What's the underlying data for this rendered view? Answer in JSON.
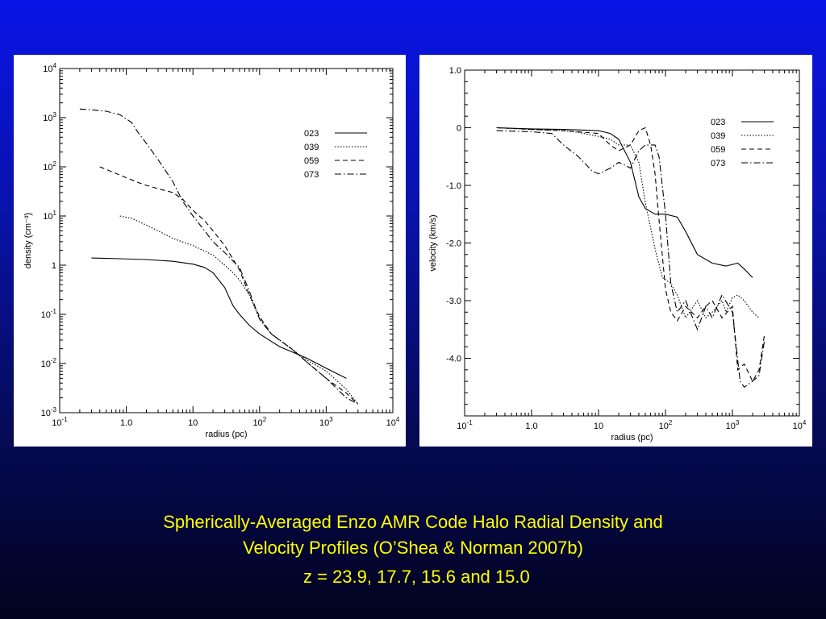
{
  "caption": {
    "line1": "Spherically-Averaged Enzo AMR Code Halo Radial Density and",
    "line2": "Velocity Profiles (O’Shea & Norman 2007b)",
    "line3": "z = 23.9, 17.7, 15.6 and 15.0"
  },
  "chart_data": [
    {
      "type": "line",
      "xlabel": "radius (pc)",
      "ylabel": "density (cm⁻³)",
      "xscale": "log",
      "yscale": "log",
      "xlim": [
        0.1,
        10000
      ],
      "ylim": [
        0.001,
        10000
      ],
      "x_ticks": [
        {
          "value": 0.1,
          "base": "10",
          "exp": "-1"
        },
        {
          "value": 1,
          "label": "1.0"
        },
        {
          "value": 10,
          "label": "10"
        },
        {
          "value": 100,
          "base": "10",
          "exp": "2"
        },
        {
          "value": 1000,
          "base": "10",
          "exp": "3"
        },
        {
          "value": 10000,
          "base": "10",
          "exp": "4"
        }
      ],
      "y_ticks": [
        {
          "value": 0.001,
          "base": "10",
          "exp": "-3"
        },
        {
          "value": 0.01,
          "base": "10",
          "exp": "-2"
        },
        {
          "value": 0.1,
          "base": "10",
          "exp": "-1"
        },
        {
          "value": 1,
          "label": "1"
        },
        {
          "value": 10,
          "base": "10",
          "exp": "1"
        },
        {
          "value": 100,
          "base": "10",
          "exp": "2"
        },
        {
          "value": 1000,
          "base": "10",
          "exp": "3"
        },
        {
          "value": 10000,
          "base": "10",
          "exp": "4"
        }
      ],
      "legend_position": "top-right",
      "series": [
        {
          "name": "023",
          "dash": "none",
          "x": [
            0.3,
            0.8,
            2,
            5,
            10,
            15,
            20,
            30,
            40,
            50,
            70,
            100,
            200,
            500,
            1000,
            2000
          ],
          "y": [
            1.4,
            1.35,
            1.3,
            1.2,
            1.05,
            0.9,
            0.7,
            0.35,
            0.15,
            0.1,
            0.06,
            0.04,
            0.022,
            0.013,
            0.008,
            0.005
          ]
        },
        {
          "name": "039",
          "dash": "1.5,2",
          "x": [
            0.8,
            1.2,
            2,
            3,
            5,
            10,
            20,
            30,
            40,
            50,
            70,
            100,
            150,
            200,
            300,
            500,
            1000,
            2000,
            3000
          ],
          "y": [
            10,
            9,
            6.5,
            5,
            3.5,
            2.5,
            1.6,
            1.0,
            0.7,
            0.5,
            0.25,
            0.08,
            0.04,
            0.03,
            0.02,
            0.012,
            0.007,
            0.003,
            0.0015
          ]
        },
        {
          "name": "059",
          "dash": "6,4",
          "x": [
            0.4,
            0.6,
            1,
            1.5,
            2,
            3,
            5,
            7,
            10,
            15,
            20,
            30,
            50,
            70,
            100,
            150,
            200,
            300,
            500,
            1000,
            2000,
            3000
          ],
          "y": [
            100,
            80,
            60,
            48,
            42,
            36,
            30,
            22,
            13,
            8,
            5,
            2.5,
            0.8,
            0.25,
            0.09,
            0.04,
            0.03,
            0.02,
            0.011,
            0.005,
            0.0025,
            0.0015
          ]
        },
        {
          "name": "073",
          "dash": "8,3,1.5,3",
          "x": [
            0.2,
            0.3,
            0.5,
            0.8,
            1.2,
            1.5,
            2,
            3,
            5,
            7,
            10,
            15,
            20,
            30,
            50,
            70,
            100,
            150,
            200,
            300,
            500,
            1000,
            2000,
            3000
          ],
          "y": [
            1500,
            1450,
            1350,
            1150,
            800,
            500,
            300,
            140,
            50,
            20,
            10,
            5,
            3,
            1.8,
            0.9,
            0.3,
            0.08,
            0.04,
            0.03,
            0.02,
            0.011,
            0.005,
            0.002,
            0.0015
          ]
        }
      ]
    },
    {
      "type": "line",
      "xlabel": "radius (pc)",
      "ylabel": "velocity (km/s)",
      "xscale": "log",
      "xlim": [
        0.1,
        10000
      ],
      "ylim": [
        -5.0,
        1.0
      ],
      "x_ticks": [
        {
          "value": 0.1,
          "base": "10",
          "exp": "-1"
        },
        {
          "value": 1,
          "label": "1.0"
        },
        {
          "value": 10,
          "label": "10"
        },
        {
          "value": 100,
          "base": "10",
          "exp": "2"
        },
        {
          "value": 1000,
          "base": "10",
          "exp": "3"
        },
        {
          "value": 10000,
          "base": "10",
          "exp": "4"
        }
      ],
      "y_ticks": [
        {
          "value": 1.0,
          "label": "1.0"
        },
        {
          "value": 0,
          "label": "0"
        },
        {
          "value": -1.0,
          "label": "-1.0"
        },
        {
          "value": -2.0,
          "label": "-2.0"
        },
        {
          "value": -3.0,
          "label": "-3.0"
        },
        {
          "value": -4.0,
          "label": "-4.0"
        }
      ],
      "legend_position": "top-right",
      "series": [
        {
          "name": "023",
          "dash": "none",
          "x": [
            0.3,
            1,
            3,
            10,
            15,
            20,
            30,
            40,
            50,
            70,
            100,
            150,
            200,
            300,
            500,
            800,
            1200,
            1500,
            2000
          ],
          "y": [
            0,
            -0.02,
            -0.03,
            -0.05,
            -0.1,
            -0.2,
            -0.6,
            -1.2,
            -1.4,
            -1.5,
            -1.5,
            -1.55,
            -1.8,
            -2.2,
            -2.35,
            -2.4,
            -2.35,
            -2.45,
            -2.6
          ]
        },
        {
          "name": "039",
          "dash": "1.5,2",
          "x": [
            0.3,
            1,
            3,
            5,
            10,
            15,
            20,
            30,
            40,
            50,
            70,
            90,
            120,
            150,
            200,
            300,
            400,
            500,
            700,
            800,
            1000,
            1200,
            1500,
            2000,
            2500
          ],
          "y": [
            0,
            -0.03,
            -0.05,
            -0.08,
            -0.15,
            -0.2,
            -0.3,
            -0.3,
            -0.6,
            -1.3,
            -2.1,
            -2.6,
            -2.7,
            -2.9,
            -3.3,
            -3.0,
            -3.3,
            -3.2,
            -3.0,
            -3.2,
            -2.95,
            -2.9,
            -3.0,
            -3.2,
            -3.3
          ]
        },
        {
          "name": "059",
          "dash": "6,4",
          "x": [
            0.3,
            1,
            3,
            10,
            15,
            20,
            30,
            40,
            50,
            60,
            70,
            80,
            100,
            120,
            150,
            200,
            300,
            400,
            500,
            700,
            1000,
            1200,
            1500,
            2000,
            2500,
            3000
          ],
          "y": [
            0,
            -0.03,
            -0.05,
            -0.1,
            -0.3,
            -0.4,
            -0.3,
            -0.05,
            0,
            -0.3,
            -0.8,
            -1.6,
            -2.8,
            -3.2,
            -3.35,
            -3.1,
            -3.3,
            -3.1,
            -3.0,
            -3.3,
            -3.1,
            -4.2,
            -4.1,
            -4.4,
            -4.2,
            -3.6
          ]
        },
        {
          "name": "073",
          "dash": "8,3,1.5,3",
          "x": [
            0.3,
            1,
            2,
            3,
            5,
            8,
            10,
            15,
            20,
            25,
            30,
            40,
            50,
            70,
            80,
            100,
            120,
            150,
            200,
            300,
            400,
            500,
            700,
            1000,
            1300,
            1500,
            2000,
            2500,
            3000
          ],
          "y": [
            -0.05,
            -0.07,
            -0.1,
            -0.3,
            -0.5,
            -0.75,
            -0.8,
            -0.7,
            -0.6,
            -0.65,
            -0.7,
            -0.4,
            -0.3,
            -0.3,
            -0.5,
            -1.5,
            -2.7,
            -3.2,
            -3.0,
            -3.5,
            -3.1,
            -3.3,
            -2.9,
            -3.2,
            -4.4,
            -4.5,
            -4.4,
            -4.3,
            -3.7
          ]
        }
      ]
    }
  ]
}
